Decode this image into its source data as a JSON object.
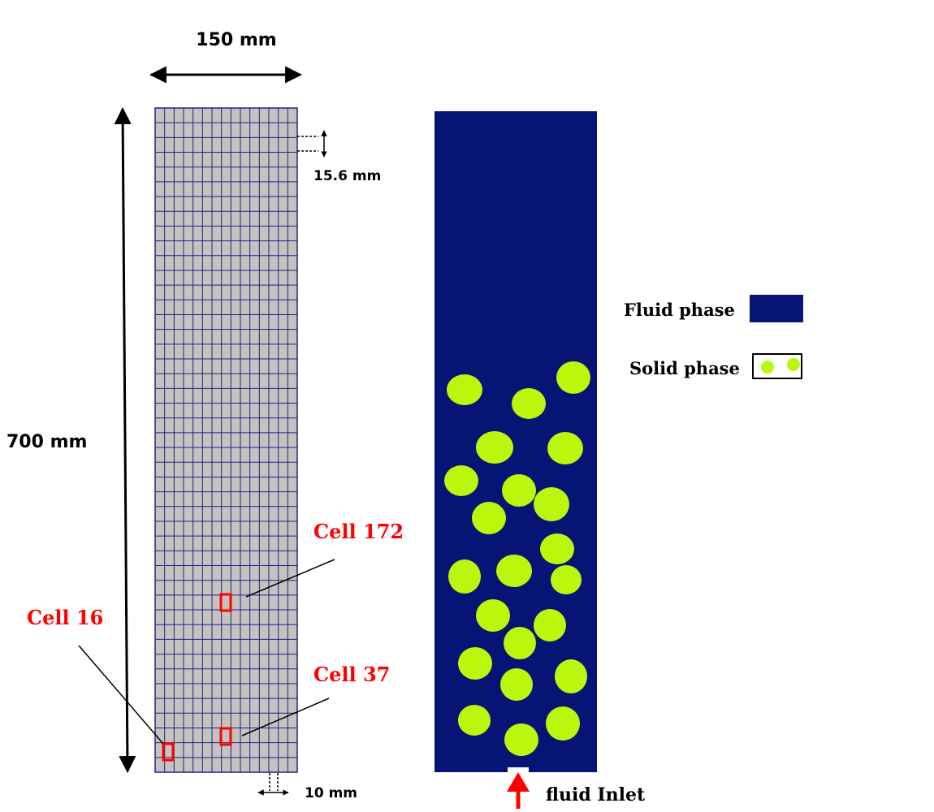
{
  "dimensions": {
    "width_label": "150  mm",
    "height_label": "700  mm",
    "cell_height_label": "15.6  mm",
    "cell_width_label": "10  mm"
  },
  "mesh": {
    "columns": 15,
    "rows": 45,
    "line_color": "#1e2486",
    "fill_color": "#c6c2bf"
  },
  "cells": [
    {
      "id": "cell-16",
      "label": "Cell  16"
    },
    {
      "id": "cell-37",
      "label": "Cell  37"
    },
    {
      "id": "cell-172",
      "label": "Cell  172"
    }
  ],
  "column_view": {
    "fluid_color": "#051475",
    "particle_color": "#bbf70d",
    "inlet_label": "fluid Inlet",
    "inlet_arrow_color": "#ff0000"
  },
  "legend": {
    "fluid_label": "Fluid  phase",
    "solid_label": "Solid  phase"
  },
  "highlight_color": "#ff0000"
}
